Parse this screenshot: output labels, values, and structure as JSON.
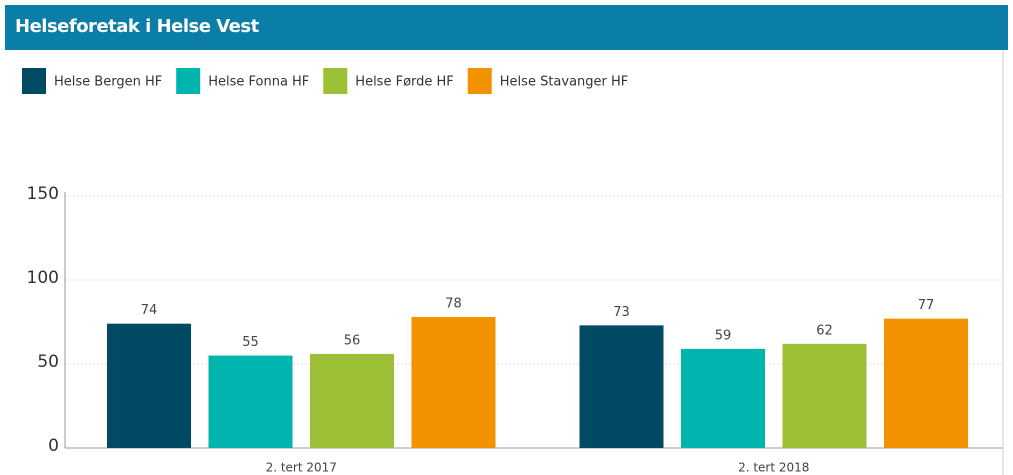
{
  "chart_data": {
    "type": "bar",
    "title": "Helseforetak i Helse Vest",
    "categories": [
      "2. tert 2017",
      "2. tert 2018"
    ],
    "series": [
      {
        "name": "Helse Bergen HF",
        "color": "#004b63",
        "values": [
          74,
          73
        ]
      },
      {
        "name": "Helse Fonna HF",
        "color": "#00b5ad",
        "values": [
          55,
          59
        ]
      },
      {
        "name": "Helse Førde HF",
        "color": "#9bbf35",
        "values": [
          56,
          62
        ]
      },
      {
        "name": "Helse Stavanger HF",
        "color": "#f39200",
        "values": [
          78,
          77
        ]
      }
    ],
    "ylim": [
      0,
      150
    ],
    "yticks": [
      0,
      50,
      100,
      150
    ],
    "grid": true,
    "legend": "top-left"
  }
}
